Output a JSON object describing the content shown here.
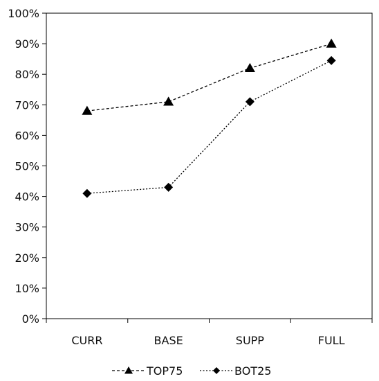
{
  "chart_data": {
    "type": "line",
    "categories": [
      "CURR",
      "BASE",
      "SUPP",
      "FULL"
    ],
    "series": [
      {
        "name": "TOP75",
        "values": [
          0.68,
          0.71,
          0.82,
          0.9
        ],
        "marker": "triangle",
        "line_style": "dashed"
      },
      {
        "name": "BOT25",
        "values": [
          0.41,
          0.43,
          0.71,
          0.845
        ],
        "marker": "diamond",
        "line_style": "dotted"
      }
    ],
    "y_ticks": [
      "0%",
      "10%",
      "20%",
      "30%",
      "40%",
      "50%",
      "60%",
      "70%",
      "80%",
      "90%",
      "100%"
    ],
    "ylim": [
      0,
      1
    ],
    "grid": false,
    "legend_position": "bottom-center",
    "colors": {
      "line": "#000000",
      "marker": "#000000",
      "axis": "#000000"
    }
  }
}
